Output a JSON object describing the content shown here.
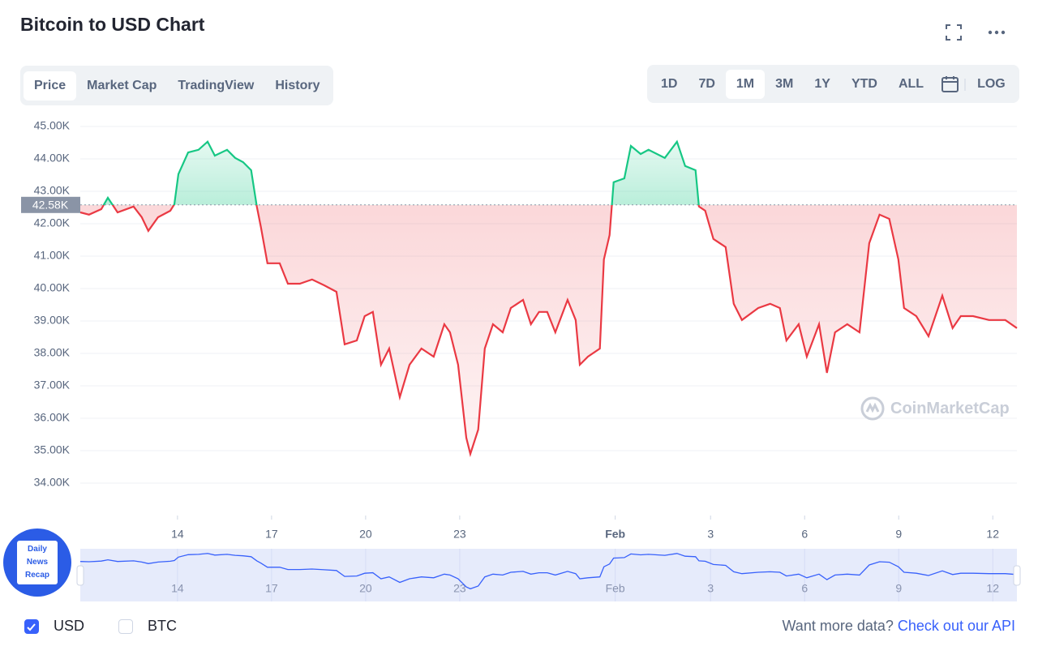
{
  "header": {
    "title": "Bitcoin to USD Chart"
  },
  "tabs": [
    "Price",
    "Market Cap",
    "TradingView",
    "History"
  ],
  "active_tab": 0,
  "ranges": [
    "1D",
    "7D",
    "1M",
    "3M",
    "1Y",
    "YTD",
    "ALL"
  ],
  "active_range": 2,
  "log_label": "LOG",
  "currencies": [
    {
      "label": "USD",
      "checked": true
    },
    {
      "label": "BTC",
      "checked": false
    }
  ],
  "footer": {
    "text": "Want more data?",
    "link": "Check out our API"
  },
  "watermark": "CoinMarketCap",
  "badge": [
    "Daily",
    "News",
    "Recap"
  ],
  "chart_data": {
    "type": "line",
    "x": [
      10.9,
      11.18,
      11.57,
      11.78,
      12.09,
      12.6,
      12.86,
      13.07,
      13.38,
      13.77,
      13.9,
      14.03,
      14.34,
      14.67,
      14.96,
      15.19,
      15.58,
      15.84,
      16.09,
      16.35,
      16.53,
      16.66,
      16.87,
      17.26,
      17.52,
      17.9,
      18.29,
      18.68,
      19.07,
      19.33,
      19.72,
      19.97,
      20.23,
      20.49,
      20.75,
      21.09,
      21.4,
      21.78,
      22.17,
      22.51,
      22.69,
      22.95,
      23.21,
      23.34,
      23.59,
      23.8,
      24.06,
      24.37,
      24.63,
      25.02,
      25.27,
      25.53,
      25.79,
      26.05,
      26.44,
      26.7,
      26.83,
      27.09,
      27.47,
      27.6,
      27.78,
      27.91,
      28.25,
      28.46,
      28.77,
      29.02,
      29.54,
      29.93,
      30.19,
      30.52,
      30.63,
      30.83,
      31.09,
      31.48,
      31.74,
      32.0,
      32.52,
      32.9,
      33.21,
      33.42,
      33.81,
      34.07,
      34.46,
      34.71,
      34.97,
      35.36,
      35.75,
      36.06,
      36.39,
      36.7,
      36.99,
      37.17,
      37.56,
      37.95,
      38.39,
      38.72,
      38.98,
      39.37,
      39.88,
      40.4,
      40.77
    ],
    "values": [
      42.35,
      42.28,
      42.45,
      42.8,
      42.35,
      42.53,
      42.2,
      41.78,
      42.2,
      42.4,
      42.6,
      43.53,
      44.2,
      44.28,
      44.53,
      44.1,
      44.28,
      44.03,
      43.9,
      43.65,
      42.53,
      41.9,
      40.78,
      40.78,
      40.15,
      40.15,
      40.28,
      40.1,
      39.9,
      38.28,
      38.4,
      39.15,
      39.28,
      37.65,
      38.15,
      36.65,
      37.65,
      38.15,
      37.9,
      38.9,
      38.65,
      37.65,
      35.4,
      34.9,
      35.65,
      38.15,
      38.9,
      38.65,
      39.4,
      39.65,
      38.9,
      39.28,
      39.28,
      38.65,
      39.65,
      39.03,
      37.65,
      37.9,
      38.15,
      40.9,
      41.65,
      43.28,
      43.4,
      44.4,
      44.15,
      44.28,
      44.03,
      44.53,
      43.78,
      43.65,
      42.53,
      42.4,
      41.53,
      41.28,
      39.53,
      39.03,
      39.4,
      39.53,
      39.4,
      38.4,
      38.9,
      37.9,
      38.9,
      37.4,
      38.65,
      38.9,
      38.65,
      41.4,
      42.28,
      42.15,
      40.9,
      39.4,
      39.15,
      38.53,
      39.78,
      38.78,
      39.15,
      39.15,
      39.03,
      39.03,
      38.78
    ],
    "color_up": "#16c784",
    "color_down": "#ea3943",
    "xlim": [
      10.9,
      40.77
    ],
    "xticks": [
      14,
      17,
      20,
      23,
      {
        "value": 27.96,
        "label": "Feb"
      },
      {
        "value": 31,
        "label": "3"
      },
      {
        "value": 34,
        "label": "6"
      },
      {
        "value": 37,
        "label": "9"
      },
      {
        "value": 40,
        "label": "12"
      }
    ],
    "ylim": [
      33,
      45.15
    ],
    "yticks": [
      {
        "value": 45,
        "label": "45.00K"
      },
      {
        "value": 44,
        "label": "44.00K"
      },
      {
        "value": 43,
        "label": "43.00K"
      },
      {
        "value": 42,
        "label": "42.00K"
      },
      {
        "value": 41,
        "label": "41.00K"
      },
      {
        "value": 40,
        "label": "40.00K"
      },
      {
        "value": 39,
        "label": "39.00K"
      },
      {
        "value": 38,
        "label": "38.00K"
      },
      {
        "value": 37,
        "label": "37.00K"
      },
      {
        "value": 36,
        "label": "36.00K"
      },
      {
        "value": 35,
        "label": "35.00K"
      },
      {
        "value": 34,
        "label": "34.00K"
      }
    ],
    "grid": true,
    "annotations": [
      {
        "value": 42.58,
        "label": "42.58K"
      }
    ]
  }
}
